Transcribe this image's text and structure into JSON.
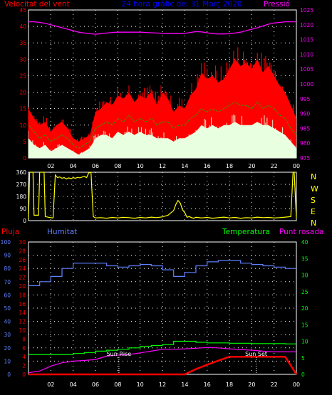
{
  "colors": {
    "background": "#000000",
    "axes": "#ffffff",
    "grid": "#ffffff",
    "wind_gust": "#ff0000",
    "wind_avg": "#00c000",
    "wind_min": "#e8ffe0",
    "pressure": "#ff00ff",
    "title": "#0000ff",
    "direction": "#ffff00",
    "humidity": "#6080ff",
    "rain": "#ff0000",
    "temperature": "#00ff00",
    "dewpoint": "#ff00ff",
    "sun_marker": "#ffffff"
  },
  "chart_data": [
    {
      "type": "line",
      "title": "24 hora gràfic de: 31 Març 2020",
      "series_labels": {
        "wind": "Velocitat del vent",
        "pressure": "Pressió"
      },
      "x_ticks": [
        "02",
        "04",
        "06",
        "08",
        "10",
        "12",
        "14",
        "16",
        "18",
        "20",
        "22",
        "00"
      ],
      "y_left": {
        "min": 0,
        "max": 45,
        "ticks": [
          0,
          5,
          10,
          15,
          20,
          25,
          30,
          35,
          40,
          45
        ]
      },
      "y_right": {
        "min": 975,
        "max": 1025,
        "ticks": [
          975,
          980,
          985,
          990,
          995,
          1000,
          1005,
          1010,
          1015,
          1020,
          1025
        ]
      },
      "hours": [
        0,
        0.5,
        1,
        1.5,
        2,
        2.5,
        3,
        3.5,
        4,
        4.5,
        5,
        5.5,
        6,
        6.5,
        7,
        7.5,
        8,
        8.5,
        9,
        9.5,
        10,
        10.5,
        11,
        11.5,
        12,
        12.5,
        13,
        13.5,
        14,
        14.5,
        15,
        15.5,
        16,
        16.5,
        17,
        17.5,
        18,
        18.5,
        19,
        19.5,
        20,
        20.5,
        21,
        21.5,
        22,
        22.5,
        23,
        23.5,
        24
      ],
      "series": [
        {
          "name": "gust",
          "values": [
            15,
            12,
            10,
            11,
            8,
            10,
            11,
            9,
            6,
            5,
            6,
            7,
            14,
            15,
            17,
            16,
            19,
            18,
            20,
            17,
            19,
            18,
            20,
            16,
            20,
            18,
            14,
            16,
            15,
            19,
            21,
            26,
            24,
            25,
            23,
            24,
            27,
            30,
            28,
            29,
            27,
            30,
            26,
            28,
            25,
            22,
            20,
            16,
            12
          ]
        },
        {
          "name": "average",
          "values": [
            10,
            8,
            6,
            7,
            5,
            6,
            7,
            6,
            4,
            3,
            4,
            5,
            9,
            10,
            11,
            10,
            12,
            11,
            13,
            11,
            12,
            11,
            12,
            10,
            11,
            11,
            9,
            10,
            10,
            12,
            13,
            15,
            14,
            15,
            14,
            15,
            16,
            17,
            16,
            16,
            15,
            17,
            15,
            16,
            15,
            13,
            12,
            9,
            7
          ]
        },
        {
          "name": "minimum",
          "values": [
            6,
            4,
            3,
            4,
            2,
            3,
            4,
            3,
            2,
            1,
            2,
            3,
            6,
            7,
            7,
            6,
            8,
            7,
            8,
            7,
            8,
            7,
            7,
            6,
            6,
            6,
            5,
            6,
            6,
            7,
            8,
            10,
            9,
            10,
            9,
            10,
            10,
            11,
            10,
            10,
            10,
            11,
            10,
            10,
            9,
            8,
            7,
            5,
            3
          ]
        },
        {
          "name": "pressure",
          "values": [
            1021,
            1021,
            1020.8,
            1020.5,
            1020,
            1019.5,
            1019,
            1018.5,
            1018,
            1017.5,
            1017.2,
            1017,
            1016.8,
            1017,
            1017.2,
            1017.4,
            1017.5,
            1017.5,
            1017.5,
            1017.5,
            1017.5,
            1017.4,
            1017.3,
            1017.2,
            1017.1,
            1017,
            1017,
            1017,
            1017.1,
            1017.4,
            1017.7,
            1017.6,
            1017.3,
            1017,
            1016.9,
            1016.9,
            1017,
            1017.2,
            1017.5,
            1018,
            1018.5,
            1019,
            1019.6,
            1020.2,
            1020.6,
            1020.8,
            1021,
            1021,
            1021
          ]
        }
      ]
    },
    {
      "type": "line",
      "y_left": {
        "min": 0,
        "max": 360,
        "ticks": [
          0,
          90,
          180,
          270,
          360
        ]
      },
      "y_right_labels": [
        "N",
        "W",
        "S",
        "E",
        "N"
      ],
      "x_ticks": [
        "02",
        "04",
        "06",
        "08",
        "10",
        "12",
        "14",
        "16",
        "18",
        "20",
        "22",
        "00"
      ],
      "hours": [
        0,
        0.1,
        0.4,
        0.5,
        0.9,
        1,
        1.4,
        1.5,
        1.8,
        2,
        2.2,
        2.4,
        2.6,
        2.8,
        3,
        3.2,
        3.4,
        3.6,
        3.8,
        4,
        4.2,
        4.4,
        4.6,
        4.8,
        5,
        5.2,
        5.4,
        5.6,
        5.8,
        6,
        6.5,
        7,
        7.5,
        8,
        8.5,
        9,
        9.5,
        10,
        10.5,
        11,
        11.5,
        12,
        12.5,
        13,
        13.2,
        13.4,
        13.6,
        13.8,
        14,
        14.2,
        14.4,
        14.6,
        14.8,
        15,
        15.5,
        16,
        16.5,
        17,
        17.5,
        18,
        18.5,
        19,
        19.5,
        20,
        20.5,
        21,
        21.5,
        22,
        22.5,
        23,
        23.5,
        23.7,
        23.8,
        24
      ],
      "series": [
        {
          "name": "direction",
          "values": [
            10,
            360,
            360,
            40,
            40,
            360,
            360,
            30,
            25,
            22,
            20,
            340,
            320,
            325,
            315,
            320,
            310,
            318,
            312,
            320,
            315,
            322,
            318,
            324,
            330,
            320,
            355,
            360,
            30,
            20,
            22,
            18,
            24,
            20,
            25,
            22,
            18,
            24,
            20,
            26,
            22,
            28,
            40,
            75,
            120,
            150,
            130,
            80,
            60,
            25,
            30,
            22,
            18,
            25,
            20,
            24,
            18,
            22,
            26,
            20,
            24,
            18,
            22,
            20,
            26,
            22,
            24,
            20,
            22,
            26,
            30,
            360,
            360,
            20
          ]
        }
      ]
    },
    {
      "type": "line",
      "series_labels": {
        "rain": "Pluja",
        "humidity": "Humitat",
        "temperature": "Temperatura",
        "dewpoint": "Punt rosada"
      },
      "annotations": [
        "Sun Rise",
        "Sun Set"
      ],
      "sun_rise_hour": 8.1,
      "sun_set_hour": 20.4,
      "x_ticks": [
        "02",
        "04",
        "06",
        "08",
        "10",
        "12",
        "14",
        "16",
        "18",
        "20",
        "22",
        "00"
      ],
      "y_humidity": {
        "min": 0,
        "max": 100,
        "ticks": [
          0,
          10,
          20,
          30,
          40,
          50,
          60,
          70,
          80,
          90,
          100
        ]
      },
      "y_rain": {
        "min": 0,
        "max": 30,
        "ticks": [
          0,
          2,
          4,
          6,
          8,
          10,
          12,
          14,
          16,
          18,
          20,
          22,
          24,
          26,
          28,
          30
        ]
      },
      "y_temp": {
        "min": 0,
        "max": 40,
        "ticks": [
          0,
          5,
          10,
          15,
          20,
          25,
          30,
          35,
          40
        ]
      },
      "hours": [
        0,
        1,
        2,
        3,
        4,
        5,
        6,
        7,
        8,
        9,
        10,
        11,
        12,
        13,
        14,
        15,
        16,
        17,
        18,
        19,
        20,
        21,
        22,
        23,
        24
      ],
      "series": [
        {
          "name": "humidity",
          "values": [
            67,
            70,
            74,
            80,
            84,
            84,
            84,
            82,
            81,
            82,
            83,
            82,
            79,
            74,
            77,
            82,
            85,
            86,
            86,
            84,
            83,
            82,
            81,
            80,
            80
          ]
        },
        {
          "name": "rain",
          "values": [
            0,
            0,
            0,
            0,
            0,
            0,
            0,
            0,
            0,
            0,
            0,
            0,
            0,
            0,
            0,
            1.2,
            2.2,
            3.1,
            4,
            4,
            4,
            4,
            4,
            4,
            0
          ]
        },
        {
          "name": "temperature",
          "values": [
            6,
            6,
            6,
            6,
            6.3,
            6.6,
            7,
            7.3,
            7.6,
            8,
            8.4,
            8.7,
            9,
            10,
            10,
            9.7,
            9.5,
            9.5,
            9.4,
            9.4,
            9.3,
            9.3,
            9.3,
            9.2,
            9.2
          ]
        },
        {
          "name": "dewpoint",
          "values": [
            0.5,
            1,
            2.5,
            3.5,
            4,
            4.2,
            4.5,
            5.5,
            5.8,
            6,
            6.5,
            7,
            7.6,
            7.6,
            7.7,
            7.9,
            8.1,
            8,
            7.7,
            7.5,
            7.3,
            7,
            6.8,
            6.8,
            6.8
          ]
        }
      ]
    }
  ]
}
